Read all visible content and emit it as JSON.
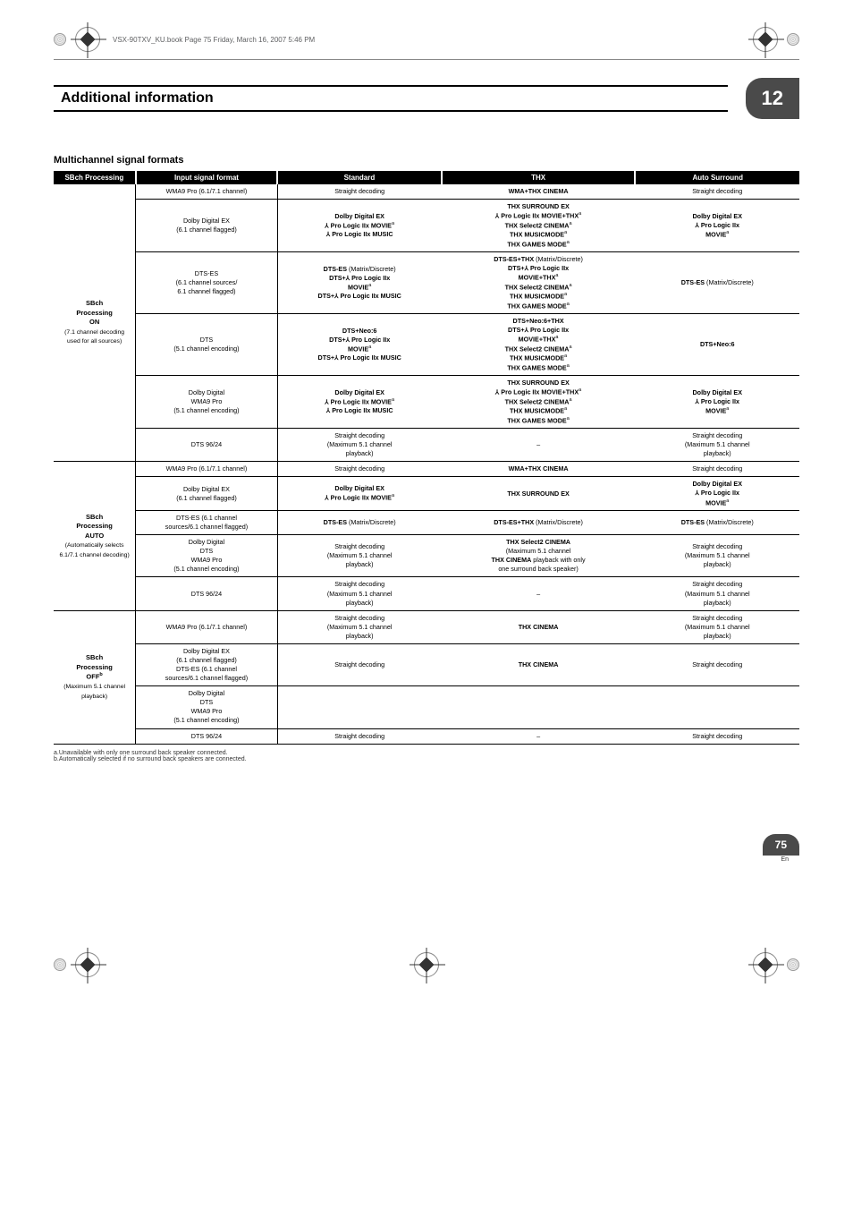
{
  "top": {
    "bookline": "VSX-90TXV_KU.book  Page 75  Friday, March 16, 2007  5:46 PM"
  },
  "header": {
    "title": "Additional information",
    "chapter": "12"
  },
  "section": {
    "title": "Multichannel signal formats"
  },
  "columns": {
    "c1": "SBch Processing",
    "c2": "Input signal format",
    "c3": "Standard",
    "c4": "THX",
    "c5": "Auto Surround"
  },
  "groups": [
    {
      "head": "<b>SBch<br>Processing<br>ON</b><br><span class='sub'>(7.1 channel decoding used for all sources)</span>",
      "rows": [
        {
          "input": "WMA9 Pro (6.1/7.1 channel)",
          "std": "Straight decoding",
          "thx": "<b>WMA+THX CINEMA</b>",
          "auto": "Straight decoding"
        },
        {
          "input": "Dolby Digital EX<br>(6.1 channel flagged)",
          "std": "<b>Dolby Digital EX<br>⅄ Pro Logic IIx MOVIE</b><sup>a</sup><br><b>⅄ Pro Logic IIx MUSIC</b>",
          "thx": "<b>THX SURROUND EX<br>⅄ Pro Logic IIx MOVIE+THX</b><sup>a</sup><br><b>THX Select2 CINEMA</b><sup>a</sup><br><b>THX MUSICMODE</b><sup>a</sup><br><b>THX GAMES MODE</b><sup>a</sup>",
          "auto": "<b>Dolby Digital EX<br>⅄ Pro Logic IIx<br>MOVIE</b><sup>a</sup>"
        },
        {
          "input": "DTS-ES<br>(6.1 channel sources/<br>6.1 channel flagged)",
          "std": "<b>DTS-ES</b> (Matrix/Discrete)<br><b>DTS+⅄ Pro Logic IIx<br>MOVIE</b><sup>a</sup><br><b>DTS+⅄ Pro Logic IIx MUSIC</b>",
          "thx": "<b>DTS-ES+THX</b> (Matrix/Discrete)<br><b>DTS+⅄ Pro Logic IIx<br>MOVIE+THX</b><sup>a</sup><br><b>THX Select2 CINEMA</b><sup>a</sup><br><b>THX MUSICMODE</b><sup>a</sup><br><b>THX GAMES MODE</b><sup>a</sup>",
          "auto": "<b>DTS-ES</b> (Matrix/Discrete)"
        },
        {
          "input": "DTS<br>(5.1 channel encoding)",
          "std": "<b>DTS+Neo:6<br>DTS+⅄ Pro Logic IIx<br>MOVIE</b><sup>a</sup><br><b>DTS+⅄ Pro Logic IIx MUSIC</b>",
          "thx": "<b>DTS+Neo:6+THX<br>DTS+⅄ Pro Logic IIx<br>MOVIE+THX</b><sup>a</sup><br><b>THX Select2 CINEMA</b><sup>a</sup><br><b>THX MUSICMODE</b><sup>a</sup><br><b>THX GAMES MODE</b><sup>a</sup>",
          "auto": "<b>DTS+Neo:6</b>"
        },
        {
          "input": "Dolby Digital<br>WMA9 Pro<br>(5.1 channel encoding)",
          "std": "<b>Dolby Digital EX<br>⅄ Pro Logic IIx MOVIE</b><sup>a</sup><br><b>⅄ Pro Logic IIx MUSIC</b>",
          "thx": "<b>THX SURROUND EX<br>⅄ Pro Logic IIx MOVIE+THX</b><sup>a</sup><br><b>THX Select2 CINEMA</b><sup>a</sup><br><b>THX MUSICMODE</b><sup>a</sup><br><b>THX GAMES MODE</b><sup>a</sup>",
          "auto": "<b>Dolby Digital EX<br>⅄ Pro Logic IIx<br>MOVIE</b><sup>a</sup>"
        },
        {
          "input": "DTS 96/24",
          "std": "Straight decoding<br>(Maximum 5.1 channel<br>playback)",
          "thx": "–",
          "auto": "Straight decoding<br>(Maximum 5.1 channel<br>playback)"
        }
      ]
    },
    {
      "head": "<b>SBch<br>Processing<br>AUTO</b><br><span class='sub'>(Automatically selects 6.1/7.1 channel decoding)</span>",
      "rows": [
        {
          "input": "WMA9 Pro (6.1/7.1 channel)",
          "std": "Straight decoding",
          "thx": "<b>WMA+THX CINEMA</b>",
          "auto": "Straight decoding"
        },
        {
          "input": "Dolby Digital EX<br>(6.1 channel flagged)",
          "std": "<b>Dolby Digital EX<br>⅄ Pro Logic IIx MOVIE</b><sup>a</sup>",
          "thx": "<b>THX SURROUND EX</b>",
          "auto": "<b>Dolby Digital EX<br>⅄ Pro Logic IIx<br>MOVIE</b><sup>a</sup>"
        },
        {
          "input": "DTS-ES (6.1 channel<br>sources/6.1 channel flagged)",
          "std": "<b>DTS-ES</b> (Matrix/Discrete)",
          "thx": "<b>DTS-ES+THX</b> (Matrix/Discrete)",
          "auto": "<b>DTS-ES</b> (Matrix/Discrete)"
        },
        {
          "input": "Dolby Digital<br>DTS<br>WMA9 Pro<br>(5.1 channel encoding)",
          "std": "Straight decoding<br>(Maximum 5.1 channel<br>playback)",
          "thx": "<b>THX Select2 CINEMA</b><br>(Maximum 5.1 channel<br><b>THX CINEMA</b> playback with only<br>one surround back speaker)",
          "auto": "Straight decoding<br>(Maximum 5.1 channel<br>playback)"
        },
        {
          "input": "DTS 96/24",
          "std": "Straight decoding<br>(Maximum 5.1 channel<br>playback)",
          "thx": "–",
          "auto": "Straight decoding<br>(Maximum 5.1 channel<br>playback)"
        }
      ]
    },
    {
      "head": "<b>SBch<br>Processing<br>OFF</b><sup>b</sup><br><span class='sub'>(Maximum 5.1 channel playback)</span>",
      "rows": [
        {
          "input": "WMA9 Pro (6.1/7.1 channel)",
          "std": "Straight decoding<br>(Maximum 5.1 channel<br>playback)",
          "thx": "<b>THX CINEMA</b>",
          "auto": "Straight decoding<br>(Maximum 5.1 channel<br>playback)"
        },
        {
          "input": "Dolby Digital EX<br>(6.1 channel flagged)<br>DTS-ES (6.1 channel<br>sources/6.1 channel flagged)",
          "std": "Straight decoding",
          "thx": "<b>THX CINEMA</b>",
          "auto": "Straight decoding",
          "merged": true
        },
        {
          "input": "Dolby Digital<br>DTS<br>WMA9 Pro<br>(5.1 channel encoding)",
          "std": "",
          "thx": "",
          "auto": "",
          "continuation": true
        },
        {
          "input": "DTS 96/24",
          "std": "Straight decoding",
          "thx": "–",
          "auto": "Straight decoding"
        }
      ]
    }
  ],
  "footnotes": {
    "a": "a.Unavailable with only one surround back speaker connected.",
    "b": "b.Automatically selected if no surround back speakers are connected."
  },
  "page": {
    "num": "75",
    "lang": "En"
  }
}
